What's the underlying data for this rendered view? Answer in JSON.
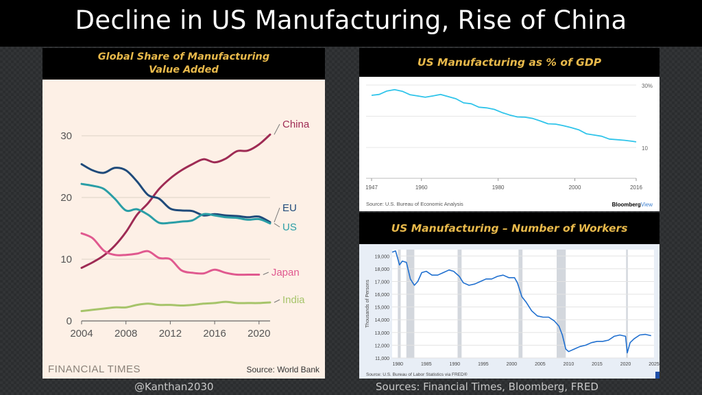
{
  "slide": {
    "title": "Decline in US Manufacturing, Rise of China",
    "handle": "@Kanthan2030",
    "sources": "Sources: Financial Times, Bloomberg, FRED"
  },
  "chart_data": [
    {
      "type": "line",
      "header": [
        "Global Share of Manufacturing",
        "Value Added"
      ],
      "xlim": [
        2004,
        2021
      ],
      "ylim": [
        0,
        32
      ],
      "xticks": [
        "2004",
        "2008",
        "2012",
        "2016",
        "2020"
      ],
      "yticks": [
        "0",
        "10",
        "20",
        "30"
      ],
      "brand": "FINANCIAL TIMES",
      "source": "Source: World Bank",
      "series": [
        {
          "name": "China",
          "color": "#9e2b54",
          "x": [
            2004,
            2005,
            2006,
            2007,
            2008,
            2009,
            2010,
            2011,
            2012,
            2013,
            2014,
            2015,
            2016,
            2017,
            2018,
            2019,
            2020,
            2021
          ],
          "y": [
            8.6,
            9.5,
            10.6,
            12.2,
            14.4,
            17.2,
            19.1,
            21.4,
            23.1,
            24.4,
            25.4,
            26.2,
            25.7,
            26.3,
            27.5,
            27.6,
            28.6,
            30.2
          ]
        },
        {
          "name": "EU",
          "color": "#1f4a7a",
          "x": [
            2004,
            2005,
            2006,
            2007,
            2008,
            2009,
            2010,
            2011,
            2012,
            2013,
            2014,
            2015,
            2016,
            2017,
            2018,
            2019,
            2020,
            2021
          ],
          "y": [
            25.4,
            24.4,
            24.0,
            24.8,
            24.4,
            22.6,
            20.4,
            19.8,
            18.2,
            17.9,
            17.8,
            17.1,
            17.3,
            17.1,
            17.0,
            16.8,
            16.9,
            16.0
          ]
        },
        {
          "name": "US",
          "color": "#2a9ea6",
          "x": [
            2004,
            2005,
            2006,
            2007,
            2008,
            2009,
            2010,
            2011,
            2012,
            2013,
            2014,
            2015,
            2016,
            2017,
            2018,
            2019,
            2020,
            2021
          ],
          "y": [
            22.2,
            21.9,
            21.4,
            19.8,
            17.9,
            18.1,
            17.2,
            15.9,
            15.9,
            16.1,
            16.3,
            17.3,
            17.1,
            16.8,
            16.7,
            16.4,
            16.5,
            15.8
          ]
        },
        {
          "name": "Japan",
          "color": "#e0598f",
          "x": [
            2004,
            2005,
            2006,
            2007,
            2008,
            2009,
            2010,
            2011,
            2012,
            2013,
            2014,
            2015,
            2016,
            2017,
            2018,
            2019,
            2020
          ],
          "y": [
            14.2,
            13.4,
            11.4,
            10.7,
            10.7,
            10.9,
            11.3,
            10.2,
            10.0,
            8.2,
            7.8,
            7.7,
            8.3,
            7.8,
            7.5,
            7.5,
            7.5
          ]
        },
        {
          "name": "India",
          "color": "#a6c46a",
          "x": [
            2004,
            2005,
            2006,
            2007,
            2008,
            2009,
            2010,
            2011,
            2012,
            2013,
            2014,
            2015,
            2016,
            2017,
            2018,
            2019,
            2020,
            2021
          ],
          "y": [
            1.6,
            1.8,
            2.0,
            2.2,
            2.2,
            2.6,
            2.8,
            2.6,
            2.6,
            2.5,
            2.6,
            2.8,
            2.9,
            3.1,
            2.9,
            2.9,
            2.9,
            3.0
          ]
        }
      ]
    },
    {
      "type": "line",
      "header": "US Manufacturing as % of GDP",
      "xlim": [
        1947,
        2016
      ],
      "ylim": [
        10,
        30
      ],
      "xticks": [
        "1947",
        "1960",
        "1980",
        "2000",
        "2016"
      ],
      "yticks": [
        "30%",
        "10"
      ],
      "source": "Source: U.S. Bureau of Economic Analysis",
      "brand_a": "Bloomberg",
      "brand_b": "View",
      "color": "#2fc4ea",
      "x": [
        1947,
        1949,
        1951,
        1953,
        1955,
        1957,
        1959,
        1961,
        1963,
        1965,
        1967,
        1969,
        1971,
        1973,
        1975,
        1977,
        1979,
        1981,
        1983,
        1985,
        1987,
        1989,
        1991,
        1993,
        1995,
        1997,
        1999,
        2001,
        2003,
        2005,
        2007,
        2009,
        2011,
        2013,
        2015,
        2016
      ],
      "y": [
        26.7,
        27.0,
        28.1,
        28.5,
        28.0,
        26.9,
        26.5,
        26.1,
        26.5,
        27.0,
        26.3,
        25.6,
        24.3,
        24.0,
        22.9,
        22.7,
        22.2,
        21.2,
        20.4,
        19.8,
        19.7,
        19.3,
        18.5,
        17.6,
        17.5,
        17.0,
        16.4,
        15.7,
        14.4,
        14.0,
        13.6,
        12.7,
        12.5,
        12.3,
        12.0,
        11.8
      ]
    },
    {
      "type": "line",
      "header": "US Manufacturing – Number of Workers",
      "xlim": [
        1979,
        2025
      ],
      "ylim": [
        11000,
        19500
      ],
      "xticks": [
        "1980",
        "1985",
        "1990",
        "1995",
        "2000",
        "2005",
        "2010",
        "2015",
        "2020",
        "2025"
      ],
      "yticks": [
        "11,000",
        "12,000",
        "13,000",
        "14,000",
        "15,000",
        "16,000",
        "17,000",
        "18,000",
        "19,000"
      ],
      "ylabel": "Thousands of Persons",
      "source": "Source: U.S. Bureau of Labor Statistics via FRED®",
      "color": "#1f6fcf",
      "recessions": [
        [
          1980.0,
          1980.5
        ],
        [
          1981.5,
          1982.9
        ],
        [
          1990.5,
          1991.2
        ],
        [
          2001.2,
          2001.9
        ],
        [
          2007.9,
          2009.5
        ],
        [
          2020.1,
          2020.4
        ]
      ],
      "x": [
        1979.0,
        1979.6,
        1980.3,
        1980.8,
        1981.5,
        1982.2,
        1982.9,
        1983.5,
        1984.2,
        1985.0,
        1986.0,
        1987.0,
        1988.0,
        1989.0,
        1989.8,
        1990.8,
        1991.5,
        1992.5,
        1993.5,
        1994.5,
        1995.5,
        1996.5,
        1997.5,
        1998.5,
        1999.5,
        2000.5,
        2001.0,
        2001.8,
        2002.5,
        2003.5,
        2004.5,
        2005.5,
        2006.5,
        2007.5,
        2008.3,
        2008.9,
        2009.5,
        2010.0,
        2011.0,
        2012.0,
        2013.0,
        2014.0,
        2015.0,
        2016.0,
        2017.0,
        2018.0,
        2019.0,
        2020.0,
        2020.3,
        2020.8,
        2021.5,
        2022.5,
        2023.5,
        2024.5
      ],
      "y": [
        19300,
        19400,
        18300,
        18600,
        18500,
        17200,
        16700,
        17000,
        17700,
        17800,
        17500,
        17500,
        17700,
        17900,
        17800,
        17400,
        16900,
        16700,
        16800,
        17000,
        17200,
        17200,
        17400,
        17500,
        17300,
        17300,
        16900,
        15800,
        15400,
        14700,
        14300,
        14200,
        14200,
        13900,
        13500,
        12800,
        11700,
        11500,
        11700,
        11900,
        12000,
        12200,
        12300,
        12300,
        12400,
        12700,
        12800,
        12700,
        11400,
        12200,
        12500,
        12800,
        12850,
        12750
      ]
    }
  ]
}
